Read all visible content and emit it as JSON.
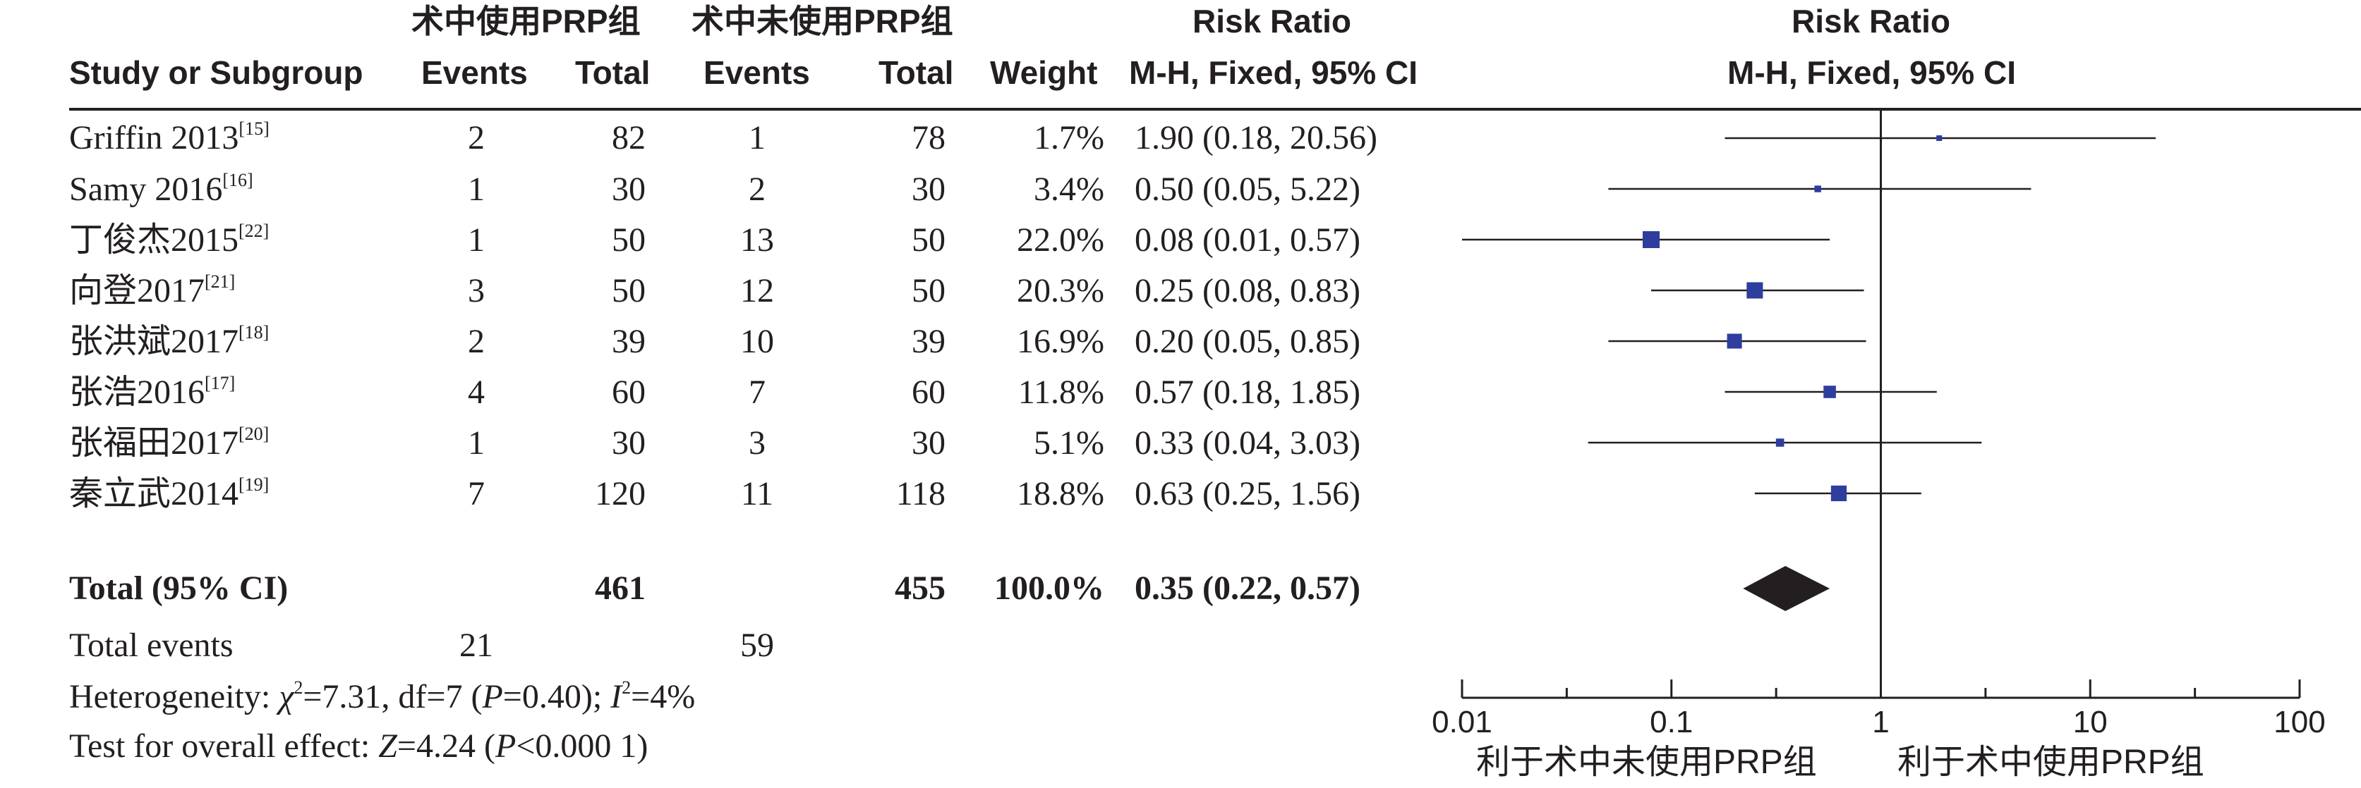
{
  "header": {
    "group1": "术中使用PRP组",
    "group2": "术中未使用PRP组",
    "risk_ratio_table": "Risk Ratio",
    "risk_ratio_plot": "Risk Ratio",
    "study_col": "Study or Subgroup",
    "events1": "Events",
    "total1": "Total",
    "events2": "Events",
    "total2": "Total",
    "weight": "Weight",
    "method_table": "M-H, Fixed, 95% CI",
    "method_plot": "M-H, Fixed, 95% CI"
  },
  "studies": [
    {
      "name": "Griffin 2013",
      "ref": "[15]",
      "e1": "2",
      "t1": "82",
      "e2": "1",
      "t2": "78",
      "weight": "1.7%",
      "ci": "1.90 (0.18, 20.56)"
    },
    {
      "name": "Samy 2016",
      "ref": "[16]",
      "e1": "1",
      "t1": "30",
      "e2": "2",
      "t2": "30",
      "weight": "3.4%",
      "ci": "0.50 (0.05, 5.22)"
    },
    {
      "name": "丁俊杰2015",
      "ref": "[22]",
      "e1": "1",
      "t1": "50",
      "e2": "13",
      "t2": "50",
      "weight": "22.0%",
      "ci": "0.08 (0.01, 0.57)"
    },
    {
      "name": "向登2017",
      "ref": "[21]",
      "e1": "3",
      "t1": "50",
      "e2": "12",
      "t2": "50",
      "weight": "20.3%",
      "ci": "0.25 (0.08, 0.83)"
    },
    {
      "name": "张洪斌2017",
      "ref": "[18]",
      "e1": "2",
      "t1": "39",
      "e2": "10",
      "t2": "39",
      "weight": "16.9%",
      "ci": "0.20 (0.05, 0.85)"
    },
    {
      "name": "张浩2016",
      "ref": "[17]",
      "e1": "4",
      "t1": "60",
      "e2": "7",
      "t2": "60",
      "weight": "11.8%",
      "ci": "0.57 (0.18, 1.85)"
    },
    {
      "name": "张福田2017",
      "ref": "[20]",
      "e1": "1",
      "t1": "30",
      "e2": "3",
      "t2": "30",
      "weight": "5.1%",
      "ci": "0.33 (0.04, 3.03)"
    },
    {
      "name": "秦立武2014",
      "ref": "[19]",
      "e1": "7",
      "t1": "120",
      "e2": "11",
      "t2": "118",
      "weight": "18.8%",
      "ci": "0.63 (0.25, 1.56)"
    }
  ],
  "total": {
    "label": "Total (95% CI)",
    "t1": "461",
    "t2": "455",
    "weight": "100.0%",
    "ci": "0.35 (0.22, 0.57)"
  },
  "total_events": {
    "label": "Total events",
    "e1": "21",
    "e2": "59"
  },
  "heterogeneity": {
    "label": "Heterogeneity: ",
    "chi": "χ",
    "chi_rest": "=7.31, df=7 (",
    "p": "P",
    "p_rest": "=0.40); ",
    "i": "I",
    "i_rest": "=4%"
  },
  "overall": {
    "label": "Test for overall effect: ",
    "z": "Z",
    "z_rest": "=4.24 (",
    "p": "P",
    "p_rest": "<0.000 1)"
  },
  "axis": {
    "ticks": [
      "0.01",
      "0.1",
      "1",
      "10",
      "100"
    ]
  },
  "favours": {
    "left": "利于术中未使用PRP组",
    "right": "利于术中使用PRP组"
  },
  "chart_data": {
    "type": "forest",
    "scale": "log",
    "xlim": [
      0.01,
      100
    ],
    "ticks": [
      0.01,
      0.1,
      1,
      10,
      100
    ],
    "reference_line": 1,
    "marker_color": "#2e3d9e",
    "studies": [
      {
        "name": "Griffin 2013",
        "rr": 1.9,
        "lo": 0.18,
        "hi": 20.56,
        "weight": 1.7
      },
      {
        "name": "Samy 2016",
        "rr": 0.5,
        "lo": 0.05,
        "hi": 5.22,
        "weight": 3.4
      },
      {
        "name": "丁俊杰2015",
        "rr": 0.08,
        "lo": 0.01,
        "hi": 0.57,
        "weight": 22.0
      },
      {
        "name": "向登2017",
        "rr": 0.25,
        "lo": 0.08,
        "hi": 0.83,
        "weight": 20.3
      },
      {
        "name": "张洪斌2017",
        "rr": 0.2,
        "lo": 0.05,
        "hi": 0.85,
        "weight": 16.9
      },
      {
        "name": "张浩2016",
        "rr": 0.57,
        "lo": 0.18,
        "hi": 1.85,
        "weight": 11.8
      },
      {
        "name": "张福田2017",
        "rr": 0.33,
        "lo": 0.04,
        "hi": 3.03,
        "weight": 5.1
      },
      {
        "name": "秦立武2014",
        "rr": 0.63,
        "lo": 0.25,
        "hi": 1.56,
        "weight": 18.8
      }
    ],
    "pooled": {
      "rr": 0.35,
      "lo": 0.22,
      "hi": 0.57
    }
  }
}
